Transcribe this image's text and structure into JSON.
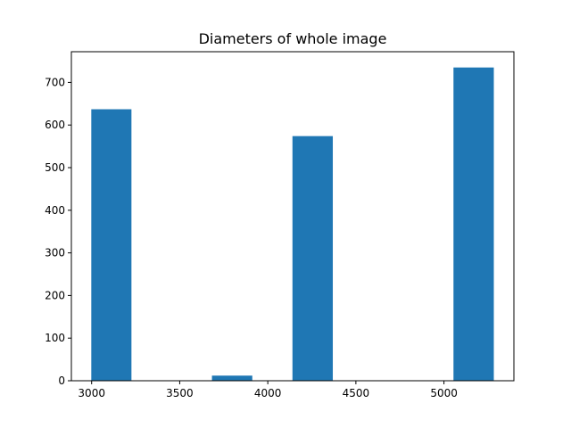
{
  "chart_data": {
    "type": "bar",
    "title": "Diameters of whole image",
    "xlabel": "",
    "ylabel": "",
    "bar_color": "#1f77b4",
    "xlim": [
      2885,
      5397
    ],
    "ylim": [
      0,
      772
    ],
    "x_ticks": [
      3000,
      3500,
      4000,
      4500,
      5000
    ],
    "y_ticks": [
      0,
      100,
      200,
      300,
      400,
      500,
      600,
      700
    ],
    "bins": [
      {
        "start": 2998,
        "end": 3226,
        "value": 637
      },
      {
        "start": 3226,
        "end": 3455,
        "value": 0
      },
      {
        "start": 3455,
        "end": 3683,
        "value": 0
      },
      {
        "start": 3683,
        "end": 3912,
        "value": 12
      },
      {
        "start": 3912,
        "end": 4140,
        "value": 0
      },
      {
        "start": 4140,
        "end": 4369,
        "value": 574
      },
      {
        "start": 4369,
        "end": 4597,
        "value": 0
      },
      {
        "start": 4597,
        "end": 4826,
        "value": 0
      },
      {
        "start": 4826,
        "end": 5054,
        "value": 0
      },
      {
        "start": 5054,
        "end": 5283,
        "value": 735
      }
    ],
    "grid": false,
    "legend": "none"
  }
}
